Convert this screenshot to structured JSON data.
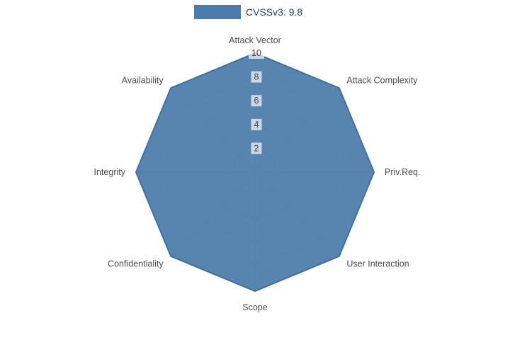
{
  "legend": {
    "label": "CVSSv3: 9.8"
  },
  "colors": {
    "fill": "#4a7ba9",
    "stroke": "#40709c",
    "grid": "#cbcbcb",
    "tick_bg": "#ffffff",
    "axis_text": "#4c4c4c"
  },
  "chart_data": {
    "type": "radar",
    "title": "",
    "categories": [
      "Attack Vector",
      "Attack Complexity",
      "Priv.Req.",
      "User Interaction",
      "Scope",
      "Confidentiality",
      "Integrity",
      "Availability"
    ],
    "series": [
      {
        "name": "CVSSv3: 9.8",
        "values": [
          10,
          10,
          10,
          10,
          10,
          10,
          10,
          10
        ]
      }
    ],
    "radial_ticks": [
      2,
      4,
      6,
      8,
      10
    ],
    "range": [
      0,
      10
    ],
    "grid": true,
    "legend_position": "top-center",
    "start_angle_deg": 90,
    "direction": "clockwise"
  }
}
